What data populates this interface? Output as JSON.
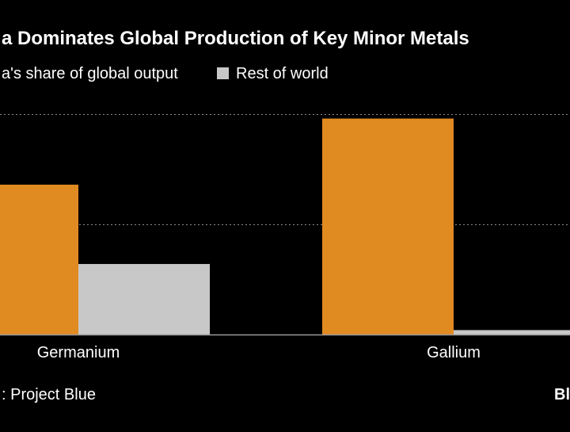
{
  "chart_data": {
    "type": "bar",
    "title": "a Dominates Global Production of Key Minor Metals",
    "legend": [
      {
        "label": "a's share of global output",
        "color": "#E08A22"
      },
      {
        "label": "Rest of world",
        "color": "#C8C8C8"
      }
    ],
    "categories": [
      "Germanium",
      "Gallium"
    ],
    "series": [
      {
        "name": "a's share of global output",
        "color": "#E08A22",
        "values": [
          68,
          98
        ]
      },
      {
        "name": "Rest of world",
        "color": "#C8C8C8",
        "values": [
          32,
          2
        ]
      }
    ],
    "ylim": [
      0,
      100
    ],
    "gridlines": [
      50,
      100
    ],
    "grid": true,
    "legend_position": "top-left",
    "source": ": Project Blue",
    "logo_text": "Bl"
  },
  "colors": {
    "background": "#000000",
    "text": "#FFFFFF",
    "gridline": "#8A8A8A",
    "axis": "#9A9A9A"
  }
}
